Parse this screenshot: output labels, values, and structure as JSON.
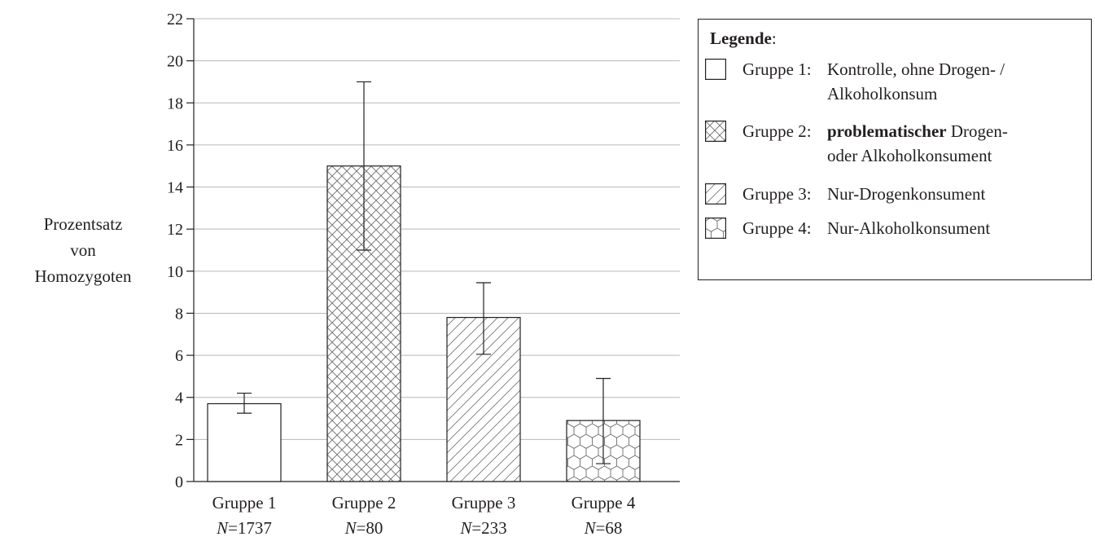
{
  "chart_data": {
    "type": "bar",
    "title": "",
    "ylabel": "Prozentsatz von Homozygoten",
    "ylabel_lines": [
      "Prozentsatz",
      "von",
      "Homozygoten"
    ],
    "xlabel": "",
    "ylim": [
      0,
      22
    ],
    "yticks": [
      0,
      2,
      4,
      6,
      8,
      10,
      12,
      14,
      16,
      18,
      20,
      22
    ],
    "grid": true,
    "legend_position": "right",
    "categories": [
      "Gruppe 1",
      "Gruppe 2",
      "Gruppe 3",
      "Gruppe 4"
    ],
    "sample_sizes": [
      "N = 1737",
      "N = 80",
      "N = 233",
      "N = 68"
    ],
    "sample_size_values": [
      "1737",
      "80",
      "233",
      "68"
    ],
    "values": [
      3.7,
      15.0,
      7.8,
      2.9
    ],
    "error_low": [
      3.25,
      11.0,
      6.05,
      0.85
    ],
    "error_high": [
      4.2,
      19.0,
      9.45,
      4.9
    ],
    "patterns": [
      "none",
      "crosshatch",
      "diagonal",
      "hexagon"
    ]
  },
  "legend": {
    "title": "Legende",
    "title_suffix": ":",
    "items": [
      {
        "prefix": "Gruppe 1:",
        "bold": "",
        "line1": "Kontrolle, ohne Drogen- /",
        "line2": "Alkoholkonsum",
        "pattern": "none"
      },
      {
        "prefix": "Gruppe 2:",
        "bold": "problematischer",
        "line1": " Drogen-",
        "line2": "oder Alkoholkonsument",
        "pattern": "crosshatch"
      },
      {
        "prefix": "Gruppe 3:",
        "bold": "",
        "line1": "Nur-Drogenkonsument",
        "line2": "",
        "pattern": "diagonal"
      },
      {
        "prefix": "Gruppe 4:",
        "bold": "",
        "line1": "Nur-Alkoholkonsument",
        "line2": "",
        "pattern": "hexagon"
      }
    ]
  },
  "colors": {
    "ink": "#231f20",
    "grid": "#b8b8b8",
    "fill": "#ffffff"
  }
}
